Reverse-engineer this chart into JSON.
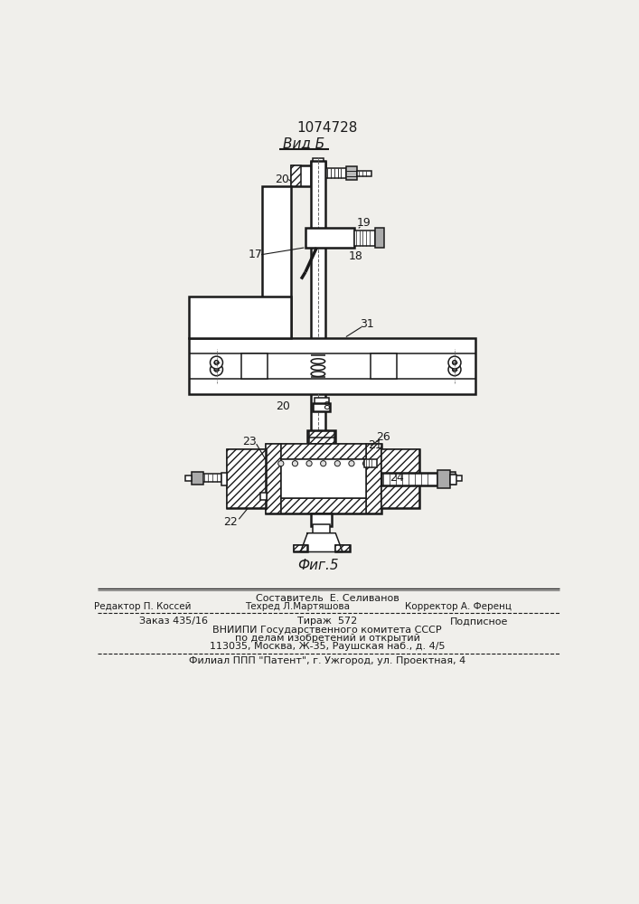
{
  "title": "1074728",
  "view_label": "Вид Б",
  "fig_label": "Фиг.5",
  "bg_color": "#f0efeb",
  "line_color": "#1a1a1a",
  "footer": {
    "sestavitel": "Составитель  Е. Селиванов",
    "redaktor": "Редактор П. Коссей",
    "tehred": "Техред Л.Мартяшова",
    "korrektor": "Корректор А. Ференц",
    "zakaz": "Заказ 435/16",
    "tiraж": "Тираж  572",
    "podpisnoe": "Подписное",
    "vniipи": "ВНИИПИ Государственного комитета СССР",
    "dela": "по делам изобретений и открытий",
    "addr": "113035, Москва, Ж-35, Раушская наб., д. 4/5",
    "filial": "Филиал ППП \"Патент\", г. Ужгород, ул. Проектная, 4"
  }
}
